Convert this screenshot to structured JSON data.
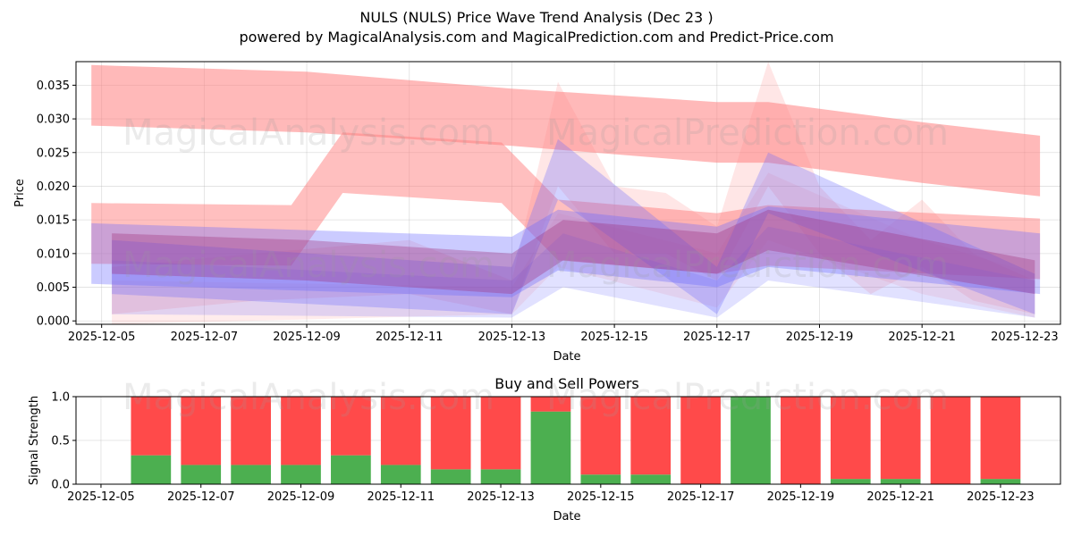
{
  "header": {
    "title": "NULS (NULS) Price Wave Trend Analysis (Dec 23 )",
    "subtitle": "powered by MagicalAnalysis.com and MagicalPrediction.com and Predict-Price.com"
  },
  "watermark": {
    "text_left": "MagicalAnalysis.com",
    "text_right": "MagicalPrediction.com"
  },
  "colors": {
    "sell_red": "#ff4a4a",
    "buy_green": "#4caf50",
    "band_red": "#ff8080",
    "band_blue": "#6b6bff",
    "band_purple": "#a0307a"
  },
  "chart_data": [
    {
      "type": "area",
      "title": "",
      "xlabel": "Date",
      "ylabel": "Price",
      "ylim": [
        -0.0005,
        0.0385
      ],
      "grid": true,
      "x_ticks": [
        "2025-12-05",
        "2025-12-07",
        "2025-12-09",
        "2025-12-11",
        "2025-12-13",
        "2025-12-15",
        "2025-12-17",
        "2025-12-19",
        "2025-12-21",
        "2025-12-23"
      ],
      "y_ticks": [
        "0.000",
        "0.005",
        "0.010",
        "0.015",
        "0.020",
        "0.025",
        "0.030",
        "0.035"
      ],
      "x_day_range": [
        4.5,
        23.7
      ],
      "series": [
        {
          "name": "upper-red-band",
          "color": "red",
          "opacity": 0.55,
          "days": [
            4.8,
            9,
            13,
            17,
            18,
            21,
            23.3
          ],
          "upper": [
            0.038,
            0.037,
            0.0345,
            0.0325,
            0.0325,
            0.0295,
            0.0275
          ],
          "lower": [
            0.029,
            0.028,
            0.026,
            0.0235,
            0.0235,
            0.0205,
            0.0185
          ]
        },
        {
          "name": "red-wave-1",
          "color": "red",
          "opacity": 0.5,
          "days": [
            4.8,
            8.7,
            9.7,
            12.8,
            13.9,
            17,
            18,
            23.3
          ],
          "upper": [
            0.0175,
            0.0172,
            0.028,
            0.0265,
            0.018,
            0.016,
            0.0172,
            0.0152
          ],
          "lower": [
            0.0085,
            0.0082,
            0.019,
            0.0175,
            0.009,
            0.007,
            0.0082,
            0.0062
          ]
        },
        {
          "name": "red-wave-2",
          "color": "red",
          "opacity": 0.2,
          "days": [
            5.2,
            8,
            11,
            13,
            13.9,
            15,
            16,
            17,
            18,
            19,
            20,
            21,
            22,
            23.2
          ],
          "upper": [
            0.008,
            0.01,
            0.012,
            0.006,
            0.0355,
            0.02,
            0.019,
            0.014,
            0.0385,
            0.02,
            0.012,
            0.018,
            0.01,
            0.006
          ],
          "lower": [
            0.001,
            0.003,
            0.004,
            0.001,
            0.02,
            0.01,
            0.01,
            0.006,
            0.02,
            0.01,
            0.004,
            0.008,
            0.003,
            0.001
          ]
        },
        {
          "name": "red-wave-3",
          "color": "red",
          "opacity": 0.15,
          "days": [
            5.2,
            13,
            13.9,
            17,
            18,
            21,
            23.2
          ],
          "upper": [
            0.006,
            0.005,
            0.016,
            0.01,
            0.022,
            0.012,
            0.007
          ],
          "lower": [
            -0.0005,
            0.001,
            0.008,
            0.002,
            0.012,
            0.004,
            0.0005
          ]
        },
        {
          "name": "blue-wave-1",
          "color": "blue",
          "opacity": 0.35,
          "days": [
            4.8,
            13,
            13.9,
            17,
            18,
            23.3
          ],
          "upper": [
            0.0145,
            0.0125,
            0.0165,
            0.014,
            0.017,
            0.013
          ],
          "lower": [
            0.0055,
            0.0035,
            0.0075,
            0.005,
            0.008,
            0.004
          ]
        },
        {
          "name": "blue-wave-2",
          "color": "blue",
          "opacity": 0.3,
          "days": [
            5.2,
            13,
            13.9,
            17,
            18,
            23.2
          ],
          "upper": [
            0.012,
            0.008,
            0.027,
            0.008,
            0.025,
            0.007
          ],
          "lower": [
            0.004,
            0.001,
            0.018,
            0.001,
            0.016,
            0.001
          ]
        },
        {
          "name": "blue-wave-3",
          "color": "blue",
          "opacity": 0.2,
          "days": [
            5.2,
            13,
            14,
            17,
            18,
            23.2
          ],
          "upper": [
            0.009,
            0.006,
            0.013,
            0.006,
            0.014,
            0.006
          ],
          "lower": [
            0.001,
            0.0005,
            0.005,
            0.0005,
            0.006,
            0.0005
          ]
        },
        {
          "name": "purple-wave",
          "color": "purple",
          "opacity": 0.35,
          "days": [
            5.2,
            9,
            13,
            14,
            17,
            18,
            23.2
          ],
          "upper": [
            0.013,
            0.012,
            0.01,
            0.015,
            0.013,
            0.0165,
            0.009
          ],
          "lower": [
            0.007,
            0.006,
            0.004,
            0.009,
            0.007,
            0.0105,
            0.004
          ]
        }
      ]
    },
    {
      "type": "bar",
      "title": "Buy and Sell Powers",
      "xlabel": "Date",
      "ylabel": "Signal Strength",
      "ylim": [
        0,
        1
      ],
      "grid": true,
      "x_ticks": [
        "2025-12-05",
        "2025-12-07",
        "2025-12-09",
        "2025-12-11",
        "2025-12-13",
        "2025-12-15",
        "2025-12-17",
        "2025-12-19",
        "2025-12-21",
        "2025-12-23"
      ],
      "y_ticks": [
        "0.0",
        "0.5",
        "1.0"
      ],
      "x_day_range": [
        4.5,
        24.2
      ],
      "bar_days": [
        6,
        7,
        8,
        9,
        10,
        11,
        12,
        13,
        14,
        15,
        16,
        17,
        18,
        19,
        20,
        21,
        22,
        23
      ],
      "series": [
        {
          "name": "Buy",
          "color": "green",
          "values": [
            0.33,
            0.22,
            0.22,
            0.22,
            0.33,
            0.22,
            0.17,
            0.17,
            0.83,
            0.11,
            0.11,
            0.0,
            1.0,
            0.0,
            0.06,
            0.06,
            0.0,
            0.06
          ]
        },
        {
          "name": "Sell",
          "color": "red",
          "values": [
            0.67,
            0.78,
            0.78,
            0.78,
            0.67,
            0.78,
            0.83,
            0.83,
            0.17,
            0.89,
            0.89,
            1.0,
            0.0,
            1.0,
            0.94,
            0.94,
            1.0,
            0.94
          ]
        }
      ]
    }
  ]
}
